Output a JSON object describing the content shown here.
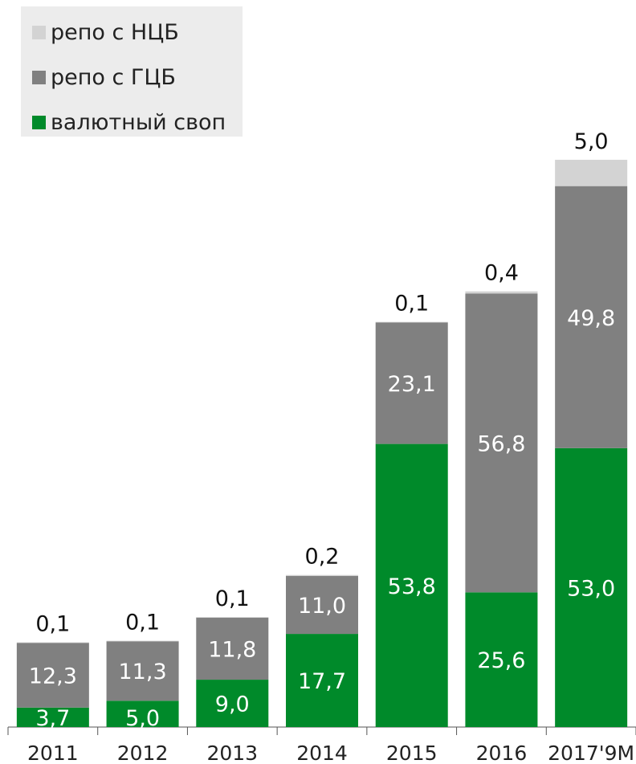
{
  "chart_data": {
    "type": "bar",
    "stacked": true,
    "categories": [
      "2011",
      "2012",
      "2013",
      "2014",
      "2015",
      "2016",
      "2017'9M"
    ],
    "series": [
      {
        "name": "валютный своп",
        "color": "#008a2a",
        "values": [
          3.7,
          5.0,
          9.0,
          17.7,
          53.8,
          25.6,
          53.0
        ],
        "labels": [
          "3,7",
          "5,0",
          "9,0",
          "17,7",
          "53,8",
          "25,6",
          "53,0"
        ]
      },
      {
        "name": "репо с ГЦБ",
        "color": "#808080",
        "values": [
          12.3,
          11.3,
          11.8,
          11.0,
          23.1,
          56.8,
          49.8
        ],
        "labels": [
          "12,3",
          "11,3",
          "11,8",
          "11,0",
          "23,1",
          "56,8",
          "49,8"
        ]
      },
      {
        "name": "репо с НЦБ",
        "color": "#d3d3d3",
        "values": [
          0.1,
          0.1,
          0.1,
          0.2,
          0.1,
          0.4,
          5.0
        ],
        "labels": [
          "0,1",
          "0,1",
          "0,1",
          "0,2",
          "0,1",
          "0,4",
          "5,0"
        ]
      }
    ],
    "legend_order": [
      "репо с НЦБ",
      "репо с ГЦБ",
      "валютный своп"
    ],
    "legend_position": "top-left",
    "grid": false,
    "ylim": [
      0,
      108
    ]
  }
}
